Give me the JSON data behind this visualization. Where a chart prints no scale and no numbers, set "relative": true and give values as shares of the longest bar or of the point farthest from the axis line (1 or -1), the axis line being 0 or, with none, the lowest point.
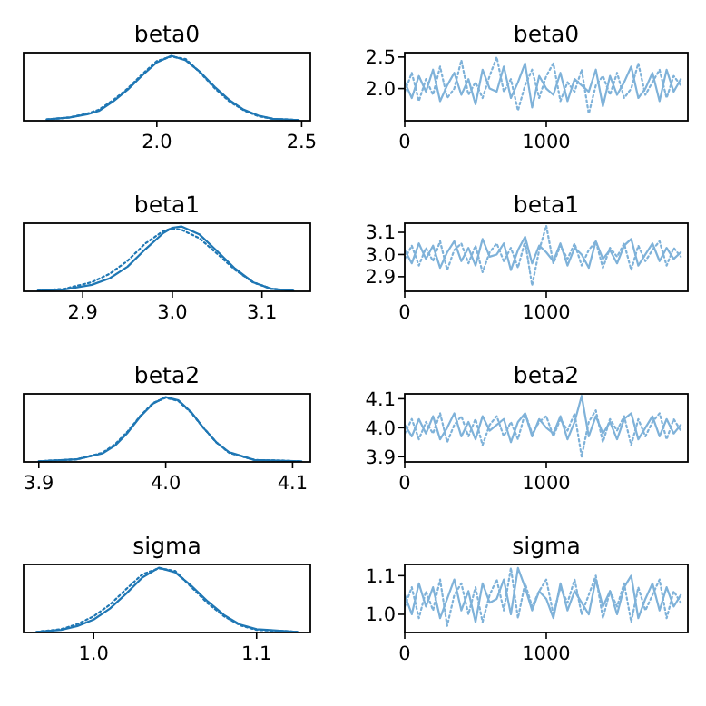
{
  "chart_data": [
    {
      "type": "line",
      "title": "beta0",
      "relative": true,
      "tick_labels": "x",
      "xlim": [
        1.54,
        2.53
      ],
      "xticks": [
        {
          "value": 2.0,
          "label": "2.0"
        },
        2.5
      ],
      "x": [
        1.62,
        1.7,
        1.76,
        1.8,
        1.85,
        1.9,
        1.95,
        2.0,
        2.05,
        2.1,
        2.15,
        2.2,
        2.25,
        2.3,
        2.35,
        2.4,
        2.49
      ],
      "series": [
        {
          "color": "#1f77b4",
          "line_style": "solid",
          "values": [
            0.02,
            0.05,
            0.1,
            0.15,
            0.3,
            0.48,
            0.7,
            0.9,
            1.0,
            0.93,
            0.75,
            0.52,
            0.32,
            0.17,
            0.08,
            0.03,
            0.01
          ]
        },
        {
          "color": "#1f77b4",
          "line_style": "dotted",
          "values": [
            0.02,
            0.05,
            0.11,
            0.17,
            0.32,
            0.5,
            0.72,
            0.92,
            0.99,
            0.95,
            0.74,
            0.5,
            0.3,
            0.16,
            0.07,
            0.03,
            0.01
          ]
        }
      ]
    },
    {
      "type": "line",
      "title": "beta0",
      "xlim": [
        0,
        2000
      ],
      "xticks": [
        0,
        1000
      ],
      "ylim": [
        1.49,
        2.57
      ],
      "yticks": [
        {
          "value": 2.0,
          "label": "2.0"
        },
        2.5
      ],
      "x": [
        0,
        50,
        100,
        150,
        200,
        250,
        300,
        350,
        400,
        450,
        500,
        550,
        600,
        650,
        700,
        750,
        800,
        850,
        900,
        950,
        1000,
        1050,
        1100,
        1150,
        1200,
        1250,
        1300,
        1350,
        1400,
        1450,
        1500,
        1550,
        1600,
        1650,
        1700,
        1750,
        1800,
        1850,
        1900,
        1950
      ],
      "series": [
        {
          "color": "#7fb2d9",
          "line_style": "solid",
          "values": [
            2.1,
            1.85,
            2.2,
            1.95,
            2.3,
            1.8,
            2.05,
            2.25,
            1.9,
            2.15,
            1.75,
            2.3,
            2.0,
            1.95,
            2.35,
            1.85,
            2.1,
            2.4,
            1.7,
            2.2,
            2.0,
            1.9,
            2.25,
            1.8,
            2.15,
            2.05,
            1.95,
            2.3,
            1.72,
            2.2,
            1.9,
            2.1,
            2.35,
            1.85,
            2.0,
            2.25,
            1.8,
            2.3,
            1.95,
            2.15
          ]
        },
        {
          "color": "#7fb2d9",
          "line_style": "dotted",
          "values": [
            1.95,
            2.25,
            1.8,
            2.15,
            1.9,
            2.35,
            1.85,
            2.0,
            2.45,
            1.9,
            2.1,
            1.85,
            2.2,
            2.5,
            1.95,
            2.15,
            1.65,
            2.05,
            2.3,
            1.85,
            2.2,
            2.4,
            1.8,
            2.1,
            1.95,
            2.3,
            1.6,
            2.05,
            2.2,
            1.9,
            2.25,
            1.85,
            2.0,
            2.4,
            1.9,
            2.1,
            2.3,
            1.85,
            2.2,
            2.05
          ]
        }
      ]
    },
    {
      "type": "line",
      "title": "beta1",
      "relative": true,
      "tick_labels": "x",
      "xlim": [
        2.834,
        3.154
      ],
      "xticks": [
        2.9,
        {
          "value": 3.0,
          "label": "3.0"
        },
        3.1
      ],
      "x": [
        2.85,
        2.88,
        2.91,
        2.93,
        2.95,
        2.97,
        2.99,
        3.0,
        3.01,
        3.03,
        3.05,
        3.07,
        3.09,
        3.11,
        3.135
      ],
      "series": [
        {
          "color": "#1f77b4",
          "line_style": "solid",
          "values": [
            0.01,
            0.03,
            0.1,
            0.2,
            0.38,
            0.65,
            0.9,
            0.98,
            1.0,
            0.88,
            0.62,
            0.35,
            0.14,
            0.04,
            0.01
          ]
        },
        {
          "color": "#1f77b4",
          "line_style": "dotted",
          "values": [
            0.01,
            0.04,
            0.14,
            0.27,
            0.47,
            0.74,
            0.93,
            0.97,
            0.95,
            0.82,
            0.58,
            0.33,
            0.14,
            0.04,
            0.01
          ]
        }
      ]
    },
    {
      "type": "line",
      "title": "beta1",
      "xlim": [
        0,
        2000
      ],
      "xticks": [
        0,
        1000
      ],
      "ylim": [
        2.834,
        3.141
      ],
      "yticks": [
        2.9,
        {
          "value": 3.0,
          "label": "3.0"
        },
        3.1
      ],
      "x": [
        0,
        50,
        100,
        150,
        200,
        250,
        300,
        350,
        400,
        450,
        500,
        550,
        600,
        650,
        700,
        750,
        800,
        850,
        900,
        950,
        1000,
        1050,
        1100,
        1150,
        1200,
        1250,
        1300,
        1350,
        1400,
        1450,
        1500,
        1550,
        1600,
        1650,
        1700,
        1750,
        1800,
        1850,
        1900,
        1950
      ],
      "series": [
        {
          "color": "#7fb2d9",
          "line_style": "solid",
          "values": [
            3.02,
            2.96,
            3.05,
            2.98,
            3.04,
            2.94,
            3.01,
            3.06,
            2.97,
            3.03,
            2.95,
            3.07,
            2.99,
            3.0,
            3.05,
            2.93,
            3.02,
            3.08,
            2.96,
            3.04,
            3.01,
            2.97,
            3.05,
            2.95,
            3.03,
            3.0,
            2.94,
            3.06,
            2.98,
            3.02,
            2.96,
            3.04,
            3.07,
            2.95,
            3.0,
            3.05,
            2.97,
            3.03,
            2.98,
            3.01
          ]
        },
        {
          "color": "#7fb2d9",
          "line_style": "dotted",
          "values": [
            2.98,
            3.04,
            2.95,
            3.03,
            2.97,
            3.06,
            2.93,
            3.02,
            3.05,
            2.96,
            3.04,
            2.92,
            3.01,
            3.05,
            2.97,
            3.03,
            2.94,
            3.06,
            2.86,
            3.02,
            3.13,
            2.96,
            3.04,
            2.98,
            3.05,
            2.95,
            3.02,
            3.06,
            2.94,
            3.03,
            2.99,
            3.05,
            2.93,
            3.04,
            2.97,
            3.02,
            3.06,
            2.95,
            3.03,
            2.99
          ]
        }
      ]
    },
    {
      "type": "line",
      "title": "beta2",
      "relative": true,
      "tick_labels": "x",
      "xlim": [
        3.888,
        4.114
      ],
      "xticks": [
        3.9,
        {
          "value": 4.0,
          "label": "4.0"
        },
        4.1
      ],
      "x": [
        3.9,
        3.93,
        3.95,
        3.96,
        3.97,
        3.98,
        3.99,
        4.0,
        4.01,
        4.02,
        4.03,
        4.04,
        4.05,
        4.07,
        4.107
      ],
      "series": [
        {
          "color": "#1f77b4",
          "line_style": "solid",
          "values": [
            0.01,
            0.04,
            0.13,
            0.25,
            0.45,
            0.7,
            0.9,
            1.0,
            0.95,
            0.77,
            0.52,
            0.3,
            0.15,
            0.03,
            0.01
          ]
        },
        {
          "color": "#1f77b4",
          "line_style": "dotted",
          "values": [
            0.01,
            0.04,
            0.14,
            0.27,
            0.47,
            0.71,
            0.91,
            0.99,
            0.94,
            0.76,
            0.52,
            0.3,
            0.14,
            0.03,
            0.01
          ]
        }
      ]
    },
    {
      "type": "line",
      "title": "beta2",
      "xlim": [
        0,
        2000
      ],
      "xticks": [
        0,
        1000
      ],
      "ylim": [
        3.882,
        4.117
      ],
      "yticks": [
        3.9,
        {
          "value": 4.0,
          "label": "4.0"
        },
        4.1
      ],
      "x": [
        0,
        50,
        100,
        150,
        200,
        250,
        300,
        350,
        400,
        450,
        500,
        550,
        600,
        650,
        700,
        750,
        800,
        850,
        900,
        950,
        1000,
        1050,
        1100,
        1150,
        1200,
        1250,
        1300,
        1350,
        1400,
        1450,
        1500,
        1550,
        1600,
        1650,
        1700,
        1750,
        1800,
        1850,
        1900,
        1950
      ],
      "series": [
        {
          "color": "#7fb2d9",
          "line_style": "solid",
          "values": [
            4.01,
            3.97,
            4.03,
            3.98,
            4.04,
            3.96,
            4.0,
            4.05,
            3.97,
            4.02,
            3.96,
            4.04,
            3.99,
            4.01,
            4.03,
            3.95,
            4.02,
            4.05,
            3.97,
            4.03,
            4.0,
            3.98,
            4.04,
            3.96,
            4.02,
            4.11,
            3.97,
            4.04,
            3.98,
            4.02,
            3.96,
            4.03,
            4.05,
            3.96,
            4.0,
            4.04,
            3.97,
            4.03,
            3.98,
            4.01
          ]
        },
        {
          "color": "#7fb2d9",
          "line_style": "dotted",
          "values": [
            3.98,
            4.03,
            3.96,
            4.02,
            3.98,
            4.05,
            3.95,
            4.01,
            4.04,
            3.97,
            4.03,
            3.94,
            4.01,
            4.04,
            3.97,
            4.02,
            3.96,
            4.05,
            3.98,
            4.02,
            4.04,
            3.97,
            4.03,
            3.99,
            4.05,
            3.9,
            4.02,
            4.06,
            3.95,
            4.03,
            3.99,
            4.04,
            3.94,
            4.03,
            3.97,
            4.02,
            4.05,
            3.96,
            4.03,
            3.99
          ]
        }
      ]
    },
    {
      "type": "line",
      "title": "sigma",
      "relative": true,
      "tick_labels": "x",
      "xlim": [
        0.957,
        1.133
      ],
      "xticks": [
        {
          "value": 1.0,
          "label": "1.0"
        },
        1.1
      ],
      "x": [
        0.965,
        0.98,
        0.99,
        1.0,
        1.01,
        1.02,
        1.03,
        1.04,
        1.05,
        1.06,
        1.07,
        1.08,
        1.09,
        1.1,
        1.125
      ],
      "series": [
        {
          "color": "#1f77b4",
          "line_style": "solid",
          "values": [
            0.01,
            0.04,
            0.1,
            0.2,
            0.37,
            0.6,
            0.85,
            1.0,
            0.93,
            0.72,
            0.48,
            0.27,
            0.12,
            0.05,
            0.01
          ]
        },
        {
          "color": "#1f77b4",
          "line_style": "dotted",
          "values": [
            0.01,
            0.05,
            0.13,
            0.25,
            0.43,
            0.67,
            0.9,
            0.99,
            0.95,
            0.7,
            0.45,
            0.25,
            0.11,
            0.04,
            0.01
          ]
        }
      ]
    },
    {
      "type": "line",
      "title": "sigma",
      "xlim": [
        0,
        2000
      ],
      "xticks": [
        0,
        1000
      ],
      "ylim": [
        0.953,
        1.129
      ],
      "yticks": [
        {
          "value": 1.0,
          "label": "1.0"
        },
        1.1
      ],
      "x": [
        0,
        50,
        100,
        150,
        200,
        250,
        300,
        350,
        400,
        450,
        500,
        550,
        600,
        650,
        700,
        750,
        800,
        850,
        900,
        950,
        1000,
        1050,
        1100,
        1150,
        1200,
        1250,
        1300,
        1350,
        1400,
        1450,
        1500,
        1550,
        1600,
        1650,
        1700,
        1750,
        1800,
        1850,
        1900,
        1950
      ],
      "series": [
        {
          "color": "#7fb2d9",
          "line_style": "solid",
          "values": [
            1.05,
            1.0,
            1.08,
            1.02,
            1.07,
            0.99,
            1.04,
            1.09,
            1.01,
            1.06,
            0.98,
            1.08,
            1.03,
            1.04,
            1.09,
            1.0,
            1.12,
            1.07,
            1.01,
            1.06,
            1.04,
            0.99,
            1.08,
            1.01,
            1.06,
            1.03,
            1.0,
            1.09,
            1.02,
            1.06,
            1.0,
            1.07,
            1.1,
            0.99,
            1.04,
            1.08,
            1.01,
            1.07,
            1.02,
            1.05
          ]
        },
        {
          "color": "#7fb2d9",
          "line_style": "dotted",
          "values": [
            1.02,
            1.07,
            0.99,
            1.06,
            1.01,
            1.09,
            0.97,
            1.05,
            1.08,
            1.0,
            1.07,
            0.98,
            1.05,
            1.09,
            1.01,
            1.12,
            0.99,
            1.08,
            1.02,
            1.06,
            1.09,
            1.0,
            1.07,
            1.03,
            1.09,
            1.0,
            1.05,
            1.1,
            0.99,
            1.06,
            1.02,
            1.08,
            0.98,
            1.07,
            1.01,
            1.05,
            1.09,
            0.99,
            1.06,
            1.03
          ]
        }
      ]
    }
  ]
}
